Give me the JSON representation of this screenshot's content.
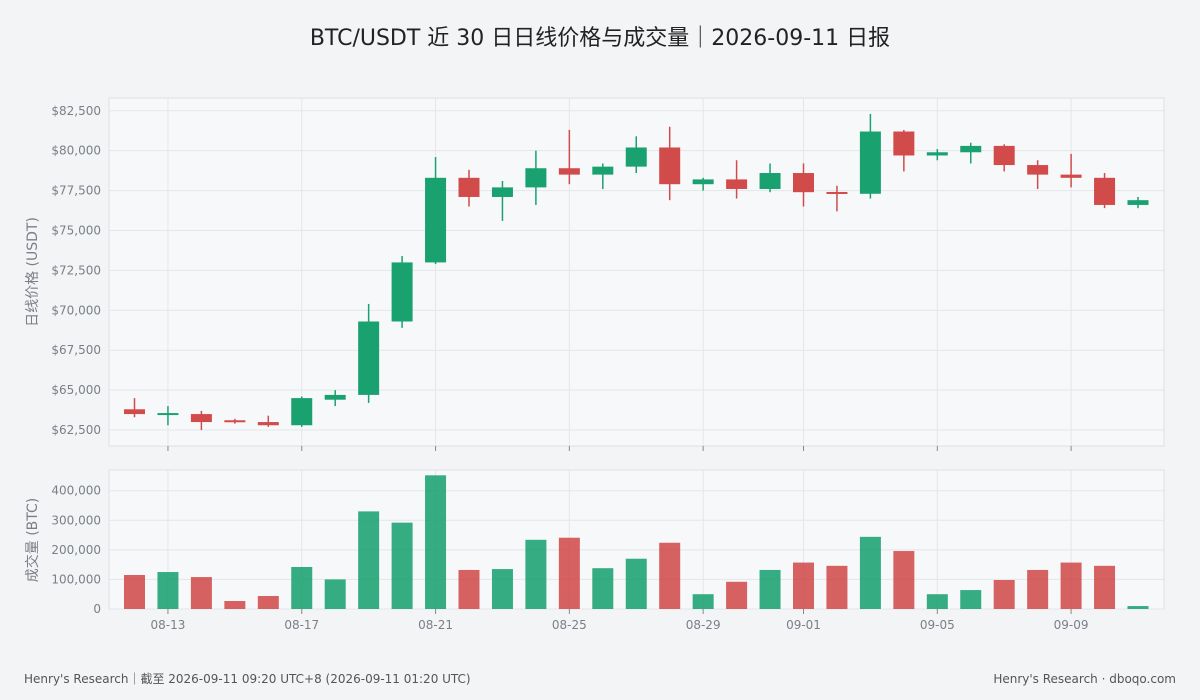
{
  "title": "BTC/USDT 近 30 日日线价格与成交量｜2026-09-11 日报",
  "footer": {
    "left": "Henry's Research｜截至 2026-09-11 09:20 UTC+8 (2026-09-11 01:20 UTC)",
    "right": "Henry's Research · dboqo.com"
  },
  "colors": {
    "up": "#1aa170",
    "down": "#d14b4b"
  },
  "chart_data": [
    {
      "type": "candlestick",
      "ylabel": "日线价格 (USDT)",
      "ylim": [
        61500,
        83300
      ],
      "yticks": [
        62500,
        65000,
        67500,
        70000,
        72500,
        75000,
        77500,
        80000,
        82500
      ],
      "ytick_labels": [
        "$62,500",
        "$65,000",
        "$67,500",
        "$70,000",
        "$72,500",
        "$75,000",
        "$77,500",
        "$80,000",
        "$82,500"
      ],
      "grid": true,
      "dates": [
        "08-12",
        "08-13",
        "08-14",
        "08-15",
        "08-16",
        "08-17",
        "08-18",
        "08-19",
        "08-20",
        "08-21",
        "08-22",
        "08-23",
        "08-24",
        "08-25",
        "08-26",
        "08-27",
        "08-28",
        "08-29",
        "08-30",
        "08-31",
        "09-01",
        "09-02",
        "09-03",
        "09-04",
        "09-05",
        "09-06",
        "09-07",
        "09-08",
        "09-09",
        "09-10",
        "09-11"
      ],
      "open": [
        63800,
        63500,
        63500,
        63100,
        63000,
        62800,
        64400,
        64700,
        69300,
        73000,
        78300,
        77100,
        77700,
        78900,
        78500,
        79000,
        80200,
        77900,
        78200,
        77600,
        78600,
        77400,
        77300,
        81200,
        79700,
        79900,
        80300,
        79100,
        78500,
        78300,
        76600
      ],
      "high": [
        64500,
        64000,
        63700,
        63200,
        63400,
        64600,
        65000,
        70400,
        73400,
        79600,
        78800,
        78100,
        80000,
        81300,
        79200,
        80900,
        81500,
        78300,
        79400,
        79200,
        79200,
        77800,
        82300,
        81300,
        80100,
        80500,
        80400,
        79400,
        79800,
        78600,
        77100
      ],
      "low": [
        63300,
        62800,
        62500,
        62900,
        62700,
        62700,
        64000,
        64200,
        68900,
        72900,
        76500,
        75600,
        76600,
        77900,
        77600,
        78600,
        76900,
        77500,
        77000,
        77400,
        76500,
        76200,
        77000,
        78700,
        79400,
        79200,
        78700,
        77600,
        77700,
        76400,
        76400
      ],
      "close": [
        63500,
        63500,
        63000,
        63000,
        62800,
        64500,
        64700,
        69300,
        73000,
        78300,
        77100,
        77700,
        78900,
        78500,
        79000,
        80200,
        77900,
        78200,
        77600,
        78600,
        77400,
        77300,
        81200,
        79700,
        79900,
        80300,
        79100,
        78500,
        78300,
        76600,
        76900
      ]
    },
    {
      "type": "bar",
      "ylabel": "成交量 (BTC)",
      "ylim": [
        0,
        470000
      ],
      "yticks": [
        0,
        100000,
        200000,
        300000,
        400000
      ],
      "ytick_labels": [
        "0",
        "100,000",
        "200,000",
        "300,000",
        "400,000"
      ],
      "grid": true,
      "values": [
        115000,
        125000,
        108000,
        27000,
        44000,
        142000,
        100000,
        330000,
        292000,
        452000,
        132000,
        135000,
        234000,
        241000,
        138000,
        170000,
        224000,
        50000,
        92000,
        132000,
        157000,
        146000,
        244000,
        196000,
        50000,
        64000,
        98000,
        132000,
        157000,
        146000,
        10000
      ]
    }
  ],
  "xaxis": {
    "tick_indices": [
      1,
      5,
      9,
      13,
      17,
      20,
      24,
      28
    ],
    "tick_labels": [
      "08-13",
      "08-17",
      "08-21",
      "08-25",
      "08-29",
      "09-01",
      "09-05",
      "09-09"
    ]
  }
}
